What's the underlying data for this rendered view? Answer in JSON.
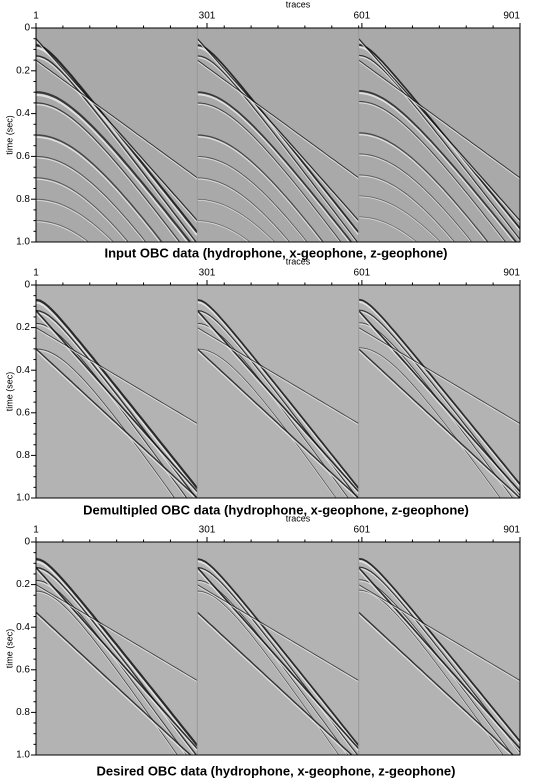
{
  "panels": [
    {
      "x_label": "traces",
      "x_ticks": [
        "1",
        "301",
        "601",
        "901"
      ],
      "y_label": "time (sec)",
      "y_ticks": [
        "0",
        "0.2",
        "0.4",
        "0.6",
        "0.8",
        "1.0"
      ],
      "caption": "Input OBC data (hydrophone, x-geophone, z-geophone)"
    },
    {
      "x_label": "traces",
      "x_ticks": [
        "1",
        "301",
        "601",
        "901"
      ],
      "y_label": "time (sec)",
      "y_ticks": [
        "0",
        "0.2",
        "0.4",
        "0.6",
        "0.8",
        "1.0"
      ],
      "caption": "Demultipled OBC data (hydrophone, x-geophone, z-geophone)"
    },
    {
      "x_label": "traces",
      "x_ticks": [
        "1",
        "301",
        "601",
        "901"
      ],
      "y_label": "time (sec)",
      "y_ticks": [
        "0",
        "0.2",
        "0.4",
        "0.6",
        "0.8",
        "1.0"
      ],
      "caption": "Desired OBC data (hydrophone, x-geophone, z-geophone)"
    }
  ]
}
